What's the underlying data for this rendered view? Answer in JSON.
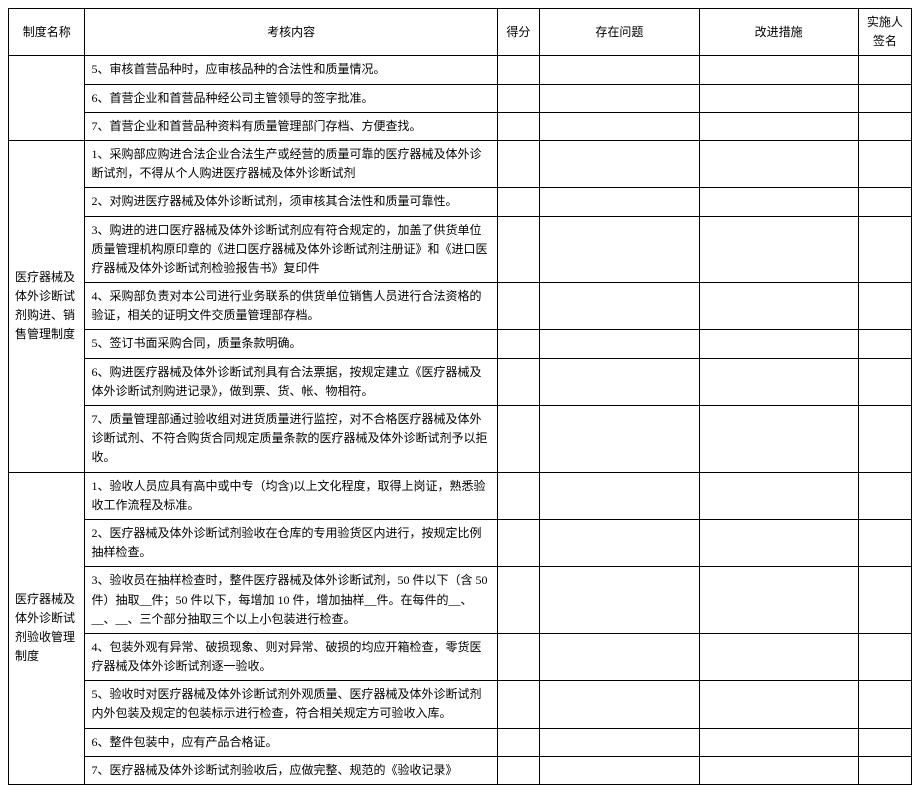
{
  "headers": {
    "name": "制度名称",
    "content": "考核内容",
    "score": "得分",
    "problem": "存在问题",
    "action": "改进措施",
    "sign": "实施人签名"
  },
  "section0": {
    "r0": "5、审核首营品种时，应审核品种的合法性和质量情况。",
    "r1": "6、首营企业和首营品种经公司主管领导的签字批准。",
    "r2": "7、首营企业和首营品种资料有质量管理部门存档、方便查找。"
  },
  "section1": {
    "name": "医疗器械及体外诊断试剂购进、销售管理制度",
    "r0": "1、采购部应购进合法企业合法生产或经营的质量可靠的医疗器械及体外诊断试剂，不得从个人购进医疗器械及体外诊断试剂",
    "r1": "2、对购进医疗器械及体外诊断试剂，须审核其合法性和质量可靠性。",
    "r2": "3、购进的进口医疗器械及体外诊断试剂应有符合规定的，加盖了供货单位质量管理机构原印章的《进口医疗器械及体外诊断试剂注册证》和《进口医疗器械及体外诊断试剂检验报告书》复印件",
    "r3": "4、采购部负责对本公司进行业务联系的供货单位销售人员进行合法资格的验证，相关的证明文件交质量管理部存档。",
    "r4": "5、签订书面采购合同，质量条款明确。",
    "r5": "6、购进医疗器械及体外诊断试剂具有合法票据，按规定建立《医疗器械及体外诊断试剂购进记录》，做到票、货、帐、物相符。",
    "r6": "7、质量管理部通过验收组对进货质量进行监控，对不合格医疗器械及体外诊断试剂、不符合购货合同规定质量条款的医疗器械及体外诊断试剂予以拒收。"
  },
  "section2": {
    "name": "医疗器械及体外诊断试剂验收管理制度",
    "r0": "1、验收人员应具有高中或中专（均含)以上文化程度，取得上岗证，熟悉验收工作流程及标准。",
    "r1": "2、医疗器械及体外诊断试剂验收在仓库的专用验货区内进行，按规定比例抽样检查。",
    "r2": "3、验收员在抽样检查时，整件医疗器械及体外诊断试剂，50 件以下（含 50件）抽取__件；50 件以下，每增加 10 件，增加抽样__件。在每件的__、__、__、三个部分抽取三个以上小包装进行检查。",
    "r3": "4、包装外观有异常、破损现象、则对异常、破损的均应开箱检查，零货医疗器械及体外诊断试剂逐一验收。",
    "r4": "5、验收时对医疗器械及体外诊断试剂外观质量、医疗器械及体外诊断试剂内外包装及规定的包装标示进行检查，符合相关规定方可验收入库。",
    "r5": "6、整件包装中，应有产品合格证。",
    "r6": "7、医疗器械及体外诊断试剂验收后，应做完整、规范的《验收记录》"
  }
}
